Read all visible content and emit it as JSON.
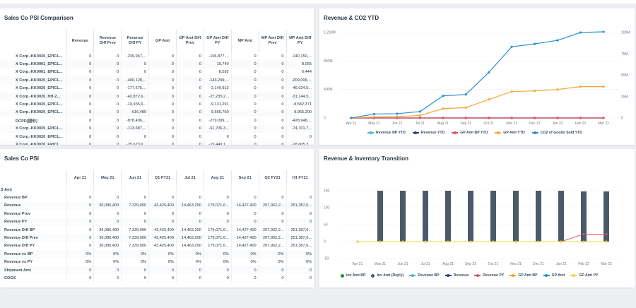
{
  "top_strip_color": "#ffffff",
  "psi_comparison": {
    "title": "Sales Co PSI Comparison",
    "columns": [
      "Revenue",
      "Revenue Diff Prev",
      "Revenue Diff PY",
      "GP Amt",
      "GP Amt Diff Prev",
      "GP Amt Diff PY",
      "MP Amt",
      "MP Amt Diff Prev",
      "MP Amt Diff PY"
    ],
    "rows": [
      {
        "label": "X Corp.-KK0020_EPICL...",
        "values": [
          "0",
          "0",
          "-239,967,...",
          "0",
          "0",
          "-106,877,...",
          "0",
          "0",
          "-140,150,..."
        ]
      },
      {
        "label": "X Corp.-KK0001_EPICL...",
        "values": [
          "0",
          "0",
          "0",
          "0",
          "0",
          "10,740",
          "0",
          "0",
          "8,055"
        ]
      },
      {
        "label": "X Corp.-KK0001_EPICL...",
        "values": [
          "0",
          "0",
          "0",
          "0",
          "0",
          "8,592",
          "0",
          "0",
          "6,444"
        ]
      },
      {
        "label": "X Corp.-KK0020_EPICL...",
        "values": [
          "0",
          "0",
          "-406,128,...",
          "0",
          "0",
          "-143,299,...",
          "0",
          "0",
          "-209,006,..."
        ]
      },
      {
        "label": "X Corp.-KK0020_EPICL...",
        "values": [
          "0",
          "0",
          "-177,675,...",
          "0",
          "0",
          "-2,140,912",
          "0",
          "0",
          "-46,024,5..."
        ]
      },
      {
        "label": "X Corp.-KK0020_HH-2...",
        "values": [
          "0",
          "0",
          "-42,872,6...",
          "0",
          "0",
          "-27,235,2...",
          "0",
          "0",
          "-31,144,5..."
        ]
      },
      {
        "label": "X Corp.-KK0020_EPICL...",
        "values": [
          "0",
          "0",
          "-10,935,6...",
          "0",
          "0",
          "-9,131,291",
          "0",
          "0",
          "-9,582,371"
        ]
      },
      {
        "label": "X Corp.-KK0020_EPICL...",
        "values": [
          "0",
          "0",
          "-916,480",
          "0",
          "0",
          "9,565,760",
          "0",
          "0",
          "9,965,200"
        ]
      },
      {
        "label": "DCPD[固形]",
        "values": [
          "0",
          "0",
          "-878,496,...",
          "0",
          "0",
          "-279,099,...",
          "0",
          "0",
          "-428,948,..."
        ]
      },
      {
        "label": "X Corp.-KK0020_EPICL...",
        "values": [
          "0",
          "0",
          "-113,687,...",
          "0",
          "0",
          "-61,706,3...",
          "0",
          "0",
          "-74,701,7..."
        ]
      },
      {
        "label": "X Corp.-KK0020_EPICL...",
        "values": [
          "0",
          "0",
          "0",
          "0",
          "0",
          "0",
          "0",
          "0",
          "0"
        ]
      },
      {
        "label": "X Corp.-KK0020_EPICL...",
        "values": [
          "0",
          "0",
          "-25,673,6...",
          "0",
          "0",
          "-15,449,1...",
          "0",
          "0",
          "-18,005,2..."
        ]
      }
    ]
  },
  "sales_psi": {
    "title": "Sales Co PSI",
    "group_label": "S Amt",
    "columns": [
      "Apr 21",
      "May 21",
      "Jun 21",
      "Q1 FY21",
      "Jul 21",
      "Aug 21",
      "Sep 21",
      "Q2 FY21",
      "H1 FY21"
    ],
    "rows": [
      {
        "label": "Revenue BP",
        "values": [
          "0",
          "0",
          "0",
          "0",
          "0",
          "0",
          "0",
          "0",
          "0"
        ]
      },
      {
        "label": "Revenue",
        "values": [
          "0",
          "36,086,400",
          "7,339,000",
          "43,425,400",
          "14,463,200",
          "179,071,6...",
          "14,427,400",
          "207,962,2...",
          "251,387,6..."
        ]
      },
      {
        "label": "Revenue Prev",
        "values": [
          "0",
          "0",
          "0",
          "0",
          "0",
          "0",
          "0",
          "0",
          "0"
        ]
      },
      {
        "label": "Revenue PY",
        "values": [
          "0",
          "0",
          "0",
          "0",
          "0",
          "0",
          "0",
          "0",
          "0"
        ]
      },
      {
        "label": "Revenue Diff BP",
        "values": [
          "0",
          "36,086,400",
          "7,339,000",
          "43,425,400",
          "14,463,200",
          "179,071,6...",
          "14,427,400",
          "207,962,2...",
          "251,387,6..."
        ]
      },
      {
        "label": "Revenue Diff Prev",
        "values": [
          "0",
          "36,086,400",
          "7,339,000",
          "43,425,400",
          "14,463,200",
          "179,071,6...",
          "14,427,400",
          "207,962,2...",
          "251,387,6..."
        ]
      },
      {
        "label": "Revenue Diff PY",
        "values": [
          "0",
          "36,086,400",
          "7,339,000",
          "43,425,400",
          "14,463,200",
          "179,071,6...",
          "14,427,400",
          "207,962,2...",
          "251,387,6..."
        ]
      },
      {
        "label": "Revenue vs BP",
        "values": [
          "0%",
          "0%",
          "0%",
          "0%",
          "0%",
          "0%",
          "0%",
          "0%",
          "0%"
        ]
      },
      {
        "label": "Revenue vs PY",
        "values": [
          "0%",
          "0%",
          "0%",
          "0%",
          "0%",
          "0%",
          "0%",
          "0%",
          "0%"
        ]
      },
      {
        "label": "Shipment Amt",
        "values": [
          "0",
          "0",
          "0",
          "0",
          "0",
          "0",
          "0",
          "0",
          "0"
        ]
      },
      {
        "label": "COGS",
        "values": [
          "0",
          "0",
          "0",
          "0",
          "0",
          "0",
          "0",
          "0",
          "0"
        ]
      }
    ]
  },
  "revenue_co2": {
    "title": "Revenue & CO2 YTD",
    "chart_data": {
      "type": "line",
      "categories": [
        "Apr 21",
        "May 21",
        "Jun 21",
        "Jul 21",
        "Aug 21",
        "Sep 21",
        "Oct 21",
        "Nov 21",
        "Dec 21",
        "Jan 22",
        "Feb 22",
        "Mar 22"
      ],
      "left_ticks": [
        "1,200M",
        "800M",
        "400M",
        "0"
      ],
      "right_ticks": [
        "100M",
        "75M",
        "50M",
        "25M",
        "0"
      ],
      "ylim_left": [
        0,
        1200
      ],
      "ylim_right": [
        0,
        100
      ],
      "series": [
        {
          "name": "Revenue BP YTD",
          "color": "#4bb8d6",
          "axis": "left",
          "values": [
            0,
            0,
            0,
            0,
            0,
            0,
            0,
            0,
            0,
            0,
            0,
            0
          ]
        },
        {
          "name": "Revenue YTD",
          "color": "#2d3a8c",
          "axis": "left",
          "values": [
            0,
            0,
            0,
            0,
            0,
            0,
            0,
            0,
            0,
            0,
            0,
            0
          ]
        },
        {
          "name": "GP Amt BP YTD",
          "color": "#e0525b",
          "axis": "left",
          "values": [
            0,
            0,
            0,
            0,
            0,
            0,
            0,
            0,
            0,
            0,
            0,
            0
          ]
        },
        {
          "name": "GP Amt YTD",
          "color": "#f3a73b",
          "axis": "left",
          "values": [
            0,
            15,
            20,
            35,
            130,
            145,
            260,
            370,
            380,
            400,
            440,
            440
          ]
        },
        {
          "name": "CO2 of Goods Sold YTD",
          "color": "#2b8fd0",
          "axis": "left",
          "values": [
            0,
            55,
            60,
            90,
            310,
            330,
            640,
            1000,
            1040,
            1090,
            1200,
            1210
          ]
        }
      ]
    }
  },
  "inventory": {
    "title": "Revenue & Inventory Transition",
    "chart_data": {
      "type": "bar",
      "categories": [
        "Apr 21",
        "May 21",
        "Jun 21",
        "Jul 21",
        "Aug 21",
        "Sep 21",
        "Oct 21",
        "Nov 21",
        "Dec 21",
        "Jan 22",
        "Feb 22",
        "Mar 22"
      ],
      "y_ticks": [
        "150",
        "100",
        "50",
        "0",
        "-50"
      ],
      "ylim": [
        -50,
        150
      ],
      "series": [
        {
          "name": "Inv Amt BP",
          "color": "#2e8b3e",
          "kind": "legend-dot",
          "values": [
            0,
            0,
            0,
            0,
            0,
            0,
            0,
            0,
            0,
            0,
            0,
            0
          ]
        },
        {
          "name": "Inv Amt (Reply)",
          "color": "#4a5a68",
          "kind": "bar",
          "values": [
            0,
            150,
            150,
            150,
            150,
            150,
            150,
            150,
            150,
            150,
            148,
            148
          ]
        },
        {
          "name": "Revenue BP",
          "color": "#4bb8d6",
          "kind": "line",
          "values": [
            0,
            0,
            0,
            0,
            0,
            0,
            0,
            0,
            0,
            0,
            0,
            0
          ]
        },
        {
          "name": "Revenue",
          "color": "#2d3a8c",
          "kind": "line",
          "values": [
            0,
            0,
            0,
            0,
            0,
            0,
            0,
            0,
            0,
            0,
            0,
            0
          ]
        },
        {
          "name": "Revenue PY",
          "color": "#e0525b",
          "kind": "line",
          "values": [
            0,
            0,
            0,
            0,
            0,
            0,
            0,
            0,
            0,
            0,
            22,
            22
          ]
        },
        {
          "name": "GP Amt BP",
          "color": "#f3a73b",
          "kind": "line",
          "values": [
            0,
            0,
            0,
            0,
            0,
            0,
            0,
            0,
            0,
            0,
            0,
            0
          ]
        },
        {
          "name": "GP Amt",
          "color": "#1f9bb5",
          "kind": "line",
          "values": [
            0,
            0,
            0,
            0,
            0,
            0,
            0,
            0,
            0,
            0,
            0,
            0
          ]
        },
        {
          "name": "GP Amt PY",
          "color": "#f1d54a",
          "kind": "line",
          "values": [
            0,
            0,
            0,
            0,
            0,
            0,
            0,
            0,
            0,
            0,
            0,
            0
          ]
        }
      ]
    }
  }
}
